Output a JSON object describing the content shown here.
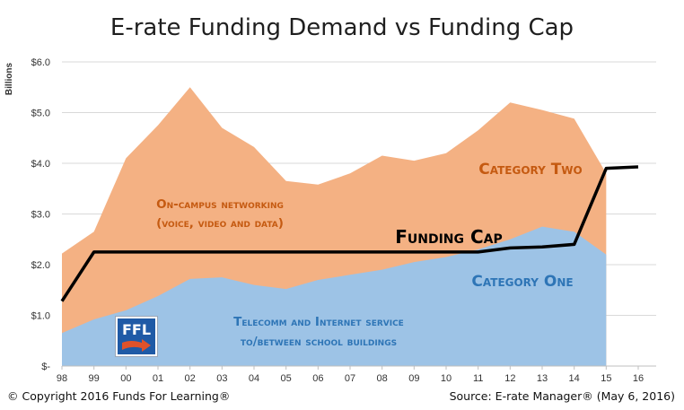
{
  "chart_data": {
    "type": "area",
    "title": "E-rate Funding Demand vs Funding Cap",
    "ylabel": "Billions",
    "xlabel": "",
    "categories": [
      "98",
      "99",
      "00",
      "01",
      "02",
      "03",
      "04",
      "05",
      "06",
      "07",
      "08",
      "09",
      "10",
      "11",
      "12",
      "13",
      "14",
      "15",
      "16"
    ],
    "y_ticks": [
      "$-",
      "$1.0",
      "$2.0",
      "$3.0",
      "$4.0",
      "$5.0",
      "$6.0"
    ],
    "ylim": [
      0,
      6
    ],
    "grid": true,
    "series": [
      {
        "name": "Category One",
        "color": "#9dc3e6",
        "values": [
          0.65,
          0.92,
          1.1,
          1.38,
          1.72,
          1.75,
          1.6,
          1.52,
          1.7,
          1.8,
          1.9,
          2.05,
          2.15,
          2.3,
          2.5,
          2.75,
          2.65,
          2.2,
          null
        ]
      },
      {
        "name": "Category Two",
        "color": "#f4b183",
        "values": [
          1.57,
          1.73,
          3.0,
          3.37,
          3.78,
          2.95,
          2.72,
          2.13,
          1.88,
          2.0,
          2.25,
          2.0,
          2.05,
          2.35,
          2.7,
          2.3,
          2.23,
          1.6,
          null
        ]
      },
      {
        "name": "Funding Cap",
        "color": "#000000",
        "values": [
          1.28,
          2.25,
          2.25,
          2.25,
          2.25,
          2.25,
          2.25,
          2.25,
          2.25,
          2.25,
          2.25,
          2.25,
          2.25,
          2.25,
          2.33,
          2.35,
          2.4,
          3.9,
          3.93
        ]
      }
    ],
    "annotations": {
      "category_two": "Category  Two",
      "category_one": "Category One",
      "funding_cap": "Funding Cap",
      "on_campus_line1": "On-campus networking",
      "on_campus_line2": "(voice, video and data)",
      "telecomm_line1": "Telecomm and Internet service",
      "telecomm_line2": "to/between school buildings"
    }
  },
  "logo": {
    "text": "FFL",
    "color": "#1f5aa6",
    "arrow_color": "#e0522a",
    "icon": "ffl-logo-icon"
  },
  "footer": {
    "copyright": "© Copyright 2016 Funds For Learning®",
    "source": "Source: E-rate Manager® (May 6, 2016)"
  }
}
